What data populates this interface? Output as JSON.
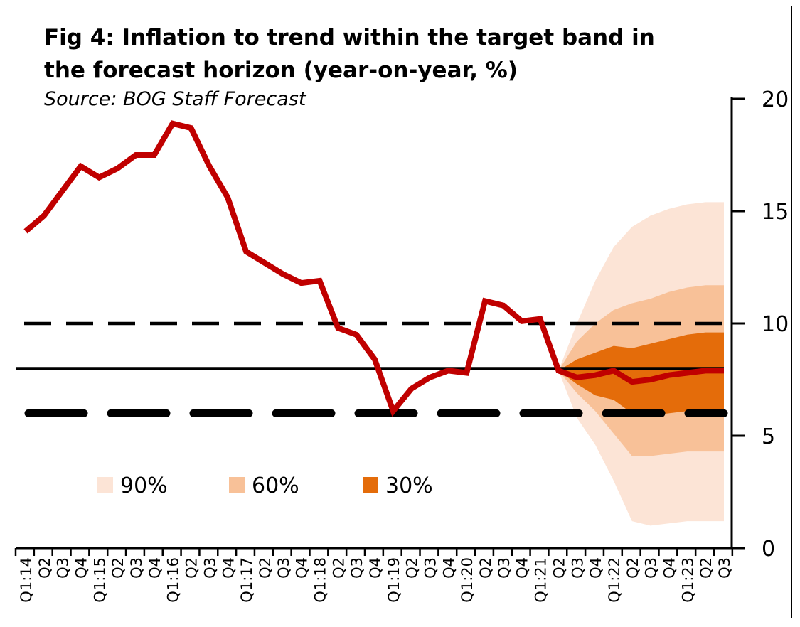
{
  "title": "Fig 4: Inflation to trend within the target band in the forecast horizon (year-on-year, %)",
  "subtitle": "Source: BOG Staff Forecast",
  "colors": {
    "inflation_line": "#C00000",
    "band_90": "#FCE4D6",
    "band_60": "#F8C198",
    "band_30": "#E46C0A",
    "reference_lines": "#000000"
  },
  "chart_data": {
    "type": "line",
    "categories": [
      "Q1:14",
      "Q2",
      "Q3",
      "Q4",
      "Q1:15",
      "Q2",
      "Q3",
      "Q4",
      "Q1:16",
      "Q2",
      "Q3",
      "Q4",
      "Q1:17",
      "Q2",
      "Q3",
      "Q4",
      "Q1:18",
      "Q2",
      "Q3",
      "Q4",
      "Q1:19",
      "Q2",
      "Q3",
      "Q4",
      "Q1:20",
      "Q2",
      "Q3",
      "Q4",
      "Q1:21",
      "Q2",
      "Q3",
      "Q4",
      "Q1:22",
      "Q2",
      "Q3",
      "Q4",
      "Q1:23",
      "Q2",
      "Q3"
    ],
    "ylim": [
      0,
      20
    ],
    "yticks": [
      0,
      5,
      10,
      15,
      20
    ],
    "y_axis_position": "right",
    "series": [
      {
        "values": [
          14.1,
          14.8,
          15.9,
          17.0,
          16.5,
          16.9,
          17.5,
          17.5,
          18.9,
          18.7,
          17.0,
          15.6,
          13.2,
          12.7,
          12.2,
          11.8,
          11.9,
          9.8,
          9.5,
          8.4,
          6.1,
          7.1,
          7.6,
          7.9,
          7.8,
          11.0,
          10.8,
          10.1,
          10.2,
          7.9,
          7.6,
          7.7,
          7.9,
          7.4,
          7.5,
          7.7,
          7.8,
          7.9,
          7.9
        ]
      }
    ],
    "fan_chart": {
      "start_index": 29,
      "bands": [
        {
          "label": "90%",
          "lower": [
            7.9,
            5.8,
            4.6,
            3.0,
            1.2,
            1.0,
            1.1,
            1.2,
            1.2,
            1.2
          ],
          "upper": [
            7.9,
            10.0,
            11.9,
            13.4,
            14.3,
            14.8,
            15.1,
            15.3,
            15.4,
            15.4
          ]
        },
        {
          "label": "60%",
          "lower": [
            7.9,
            6.9,
            6.1,
            5.1,
            4.1,
            4.1,
            4.2,
            4.3,
            4.3,
            4.3
          ],
          "upper": [
            7.9,
            9.2,
            10.0,
            10.6,
            10.9,
            11.1,
            11.4,
            11.6,
            11.7,
            11.7
          ]
        },
        {
          "label": "30%",
          "lower": [
            7.9,
            7.3,
            6.8,
            6.6,
            6.0,
            5.9,
            6.0,
            6.1,
            6.2,
            6.2
          ],
          "upper": [
            7.9,
            8.4,
            8.7,
            9.0,
            8.9,
            9.1,
            9.3,
            9.5,
            9.6,
            9.6
          ]
        }
      ]
    },
    "reference_lines": [
      {
        "y": 10,
        "style": "dashed"
      },
      {
        "y": 8,
        "style": "solid"
      },
      {
        "y": 6,
        "style": "dashed-thick"
      }
    ],
    "legend": {
      "placement": "bottom-left",
      "entries": [
        "90%",
        "60%",
        "30%"
      ]
    },
    "grid": false
  }
}
